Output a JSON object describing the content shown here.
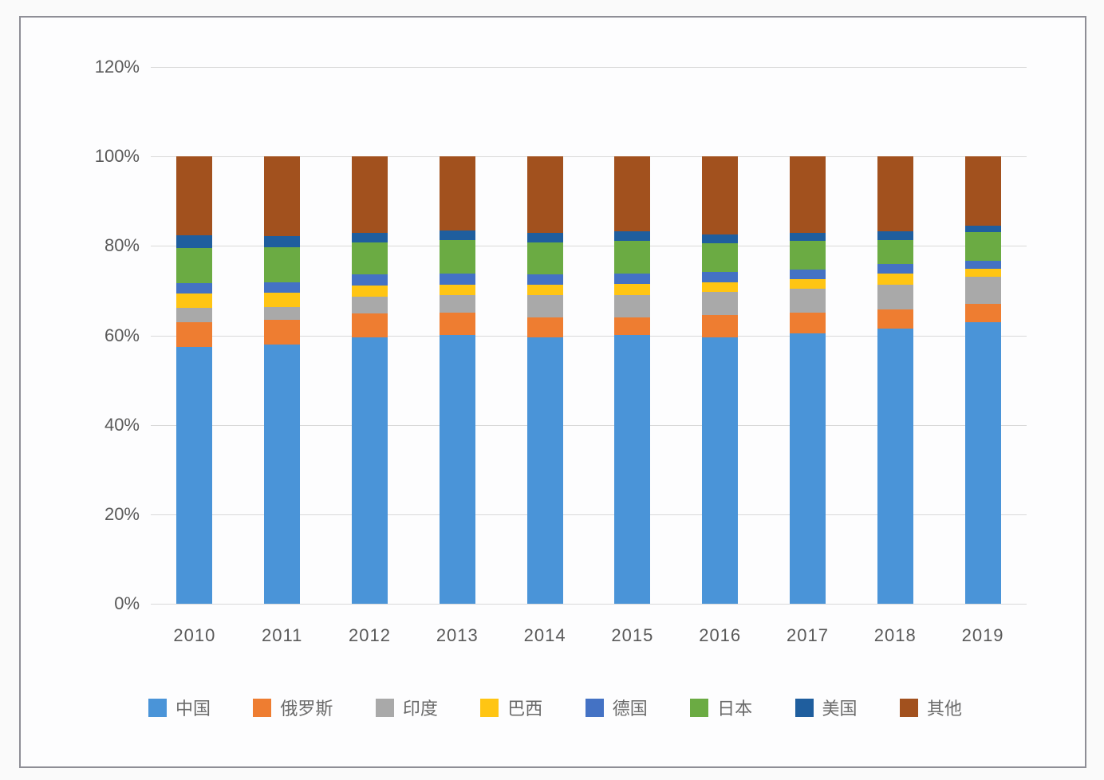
{
  "page": {
    "background_color": "#fafafa",
    "panel_border_color": "#8e8e96",
    "panel_background_color": "#fdfdfe"
  },
  "chart_data": {
    "type": "bar",
    "stacked": true,
    "orientation": "vertical",
    "title": "",
    "xlabel": "",
    "ylabel": "",
    "categories": [
      "2010",
      "2011",
      "2012",
      "2013",
      "2014",
      "2015",
      "2016",
      "2017",
      "2018",
      "2019"
    ],
    "series": [
      {
        "name": "中国",
        "color": "#4A94D8",
        "values": [
          57.5,
          58.0,
          59.6,
          60.1,
          59.6,
          60.1,
          59.6,
          60.4,
          61.5,
          63.0
        ]
      },
      {
        "name": "俄罗斯",
        "color": "#EE7D31",
        "values": [
          5.5,
          5.4,
          5.3,
          4.9,
          4.4,
          3.9,
          5.0,
          4.6,
          4.3,
          4.1
        ]
      },
      {
        "name": "印度",
        "color": "#A9A9A9",
        "values": [
          3.1,
          2.9,
          3.7,
          4.1,
          5.0,
          5.1,
          5.2,
          5.4,
          5.5,
          6.0
        ]
      },
      {
        "name": "巴西",
        "color": "#FFC513",
        "values": [
          3.2,
          3.2,
          2.6,
          2.3,
          2.4,
          2.4,
          2.0,
          2.2,
          2.6,
          1.8
        ]
      },
      {
        "name": "德国",
        "color": "#4472C4",
        "values": [
          2.4,
          2.3,
          2.4,
          2.4,
          2.2,
          2.4,
          2.4,
          2.2,
          2.0,
          1.8
        ]
      },
      {
        "name": "日本",
        "color": "#6BAB43",
        "values": [
          7.9,
          8.0,
          7.2,
          7.5,
          7.2,
          7.2,
          6.4,
          6.4,
          5.5,
          6.4
        ]
      },
      {
        "name": "美国",
        "color": "#1F5E9E",
        "values": [
          2.7,
          2.4,
          2.2,
          2.2,
          2.1,
          2.1,
          2.0,
          1.7,
          1.9,
          1.4
        ]
      },
      {
        "name": "其他",
        "color": "#A2511E",
        "values": [
          17.7,
          17.8,
          17.0,
          16.5,
          17.1,
          16.8,
          17.4,
          17.1,
          16.7,
          15.5
        ]
      }
    ],
    "ylim": [
      0,
      120
    ],
    "ytick_step": 20,
    "ytick_labels": [
      "0%",
      "20%",
      "40%",
      "60%",
      "80%",
      "100%",
      "120%"
    ],
    "grid": true,
    "gridline_color": "#d9d9d9",
    "axis_text_color": "#595959",
    "legend_position": "bottom",
    "legend_labels": [
      "中国",
      "俄罗斯",
      "印度",
      "巴西",
      "德国",
      "日本",
      "美国",
      "其他"
    ]
  }
}
